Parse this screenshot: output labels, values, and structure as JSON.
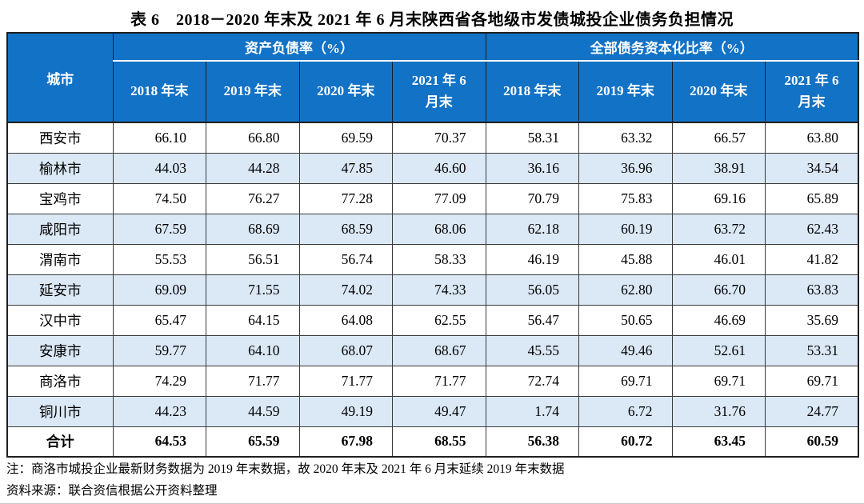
{
  "title": "表 6　2018－2020 年末及 2021 年 6 月末陕西省各地级市发债城投企业债务负担情况",
  "colors": {
    "header_bg": "#1272C6",
    "header_text": "#FFFFFF",
    "alt_row_bg": "#DBE8F6",
    "border_dark": "#1F1F1F"
  },
  "table": {
    "corner_label": "城市",
    "groups": [
      {
        "label": "资产负债率（%）",
        "columns": [
          "2018 年末",
          "2019 年末",
          "2020 年末",
          "2021 年 6\n月末"
        ]
      },
      {
        "label": "全部债务资本化比率（%）",
        "columns": [
          "2018 年末",
          "2019 年末",
          "2020 年末",
          "2021 年 6\n月末"
        ]
      }
    ],
    "rows": [
      {
        "city": "西安市",
        "values": [
          "66.10",
          "66.80",
          "69.59",
          "70.37",
          "58.31",
          "63.32",
          "66.57",
          "63.80"
        ]
      },
      {
        "city": "榆林市",
        "values": [
          "44.03",
          "44.28",
          "47.85",
          "46.60",
          "36.16",
          "36.96",
          "38.91",
          "34.54"
        ]
      },
      {
        "city": "宝鸡市",
        "values": [
          "74.50",
          "76.27",
          "77.28",
          "77.09",
          "70.79",
          "75.83",
          "69.16",
          "65.89"
        ]
      },
      {
        "city": "咸阳市",
        "values": [
          "67.59",
          "68.69",
          "68.59",
          "68.06",
          "62.18",
          "60.19",
          "63.72",
          "62.43"
        ]
      },
      {
        "city": "渭南市",
        "values": [
          "55.53",
          "56.51",
          "56.74",
          "58.33",
          "46.19",
          "45.88",
          "46.01",
          "41.82"
        ]
      },
      {
        "city": "延安市",
        "values": [
          "69.09",
          "71.55",
          "74.02",
          "74.33",
          "56.05",
          "62.80",
          "66.70",
          "63.83"
        ]
      },
      {
        "city": "汉中市",
        "values": [
          "65.47",
          "64.15",
          "64.08",
          "62.55",
          "56.47",
          "50.65",
          "46.69",
          "35.69"
        ]
      },
      {
        "city": "安康市",
        "values": [
          "59.77",
          "64.10",
          "68.07",
          "68.67",
          "45.55",
          "49.46",
          "52.61",
          "53.31"
        ]
      },
      {
        "city": "商洛市",
        "values": [
          "74.29",
          "71.77",
          "71.77",
          "71.77",
          "72.74",
          "69.71",
          "69.71",
          "69.71"
        ]
      },
      {
        "city": "铜川市",
        "values": [
          "44.23",
          "44.59",
          "49.19",
          "49.47",
          "1.74",
          "6.72",
          "31.76",
          "24.77"
        ]
      },
      {
        "city": "合计",
        "total": true,
        "values": [
          "64.53",
          "65.59",
          "67.98",
          "68.55",
          "56.38",
          "60.72",
          "63.45",
          "60.59"
        ]
      }
    ]
  },
  "notes": {
    "note_line": "注：商洛市城投企业最新财务数据为 2019 年末数据，故 2020 年末及 2021 年 6 月末延续 2019 年末数据",
    "source_line": "资料来源：联合资信根据公开资料整理"
  }
}
